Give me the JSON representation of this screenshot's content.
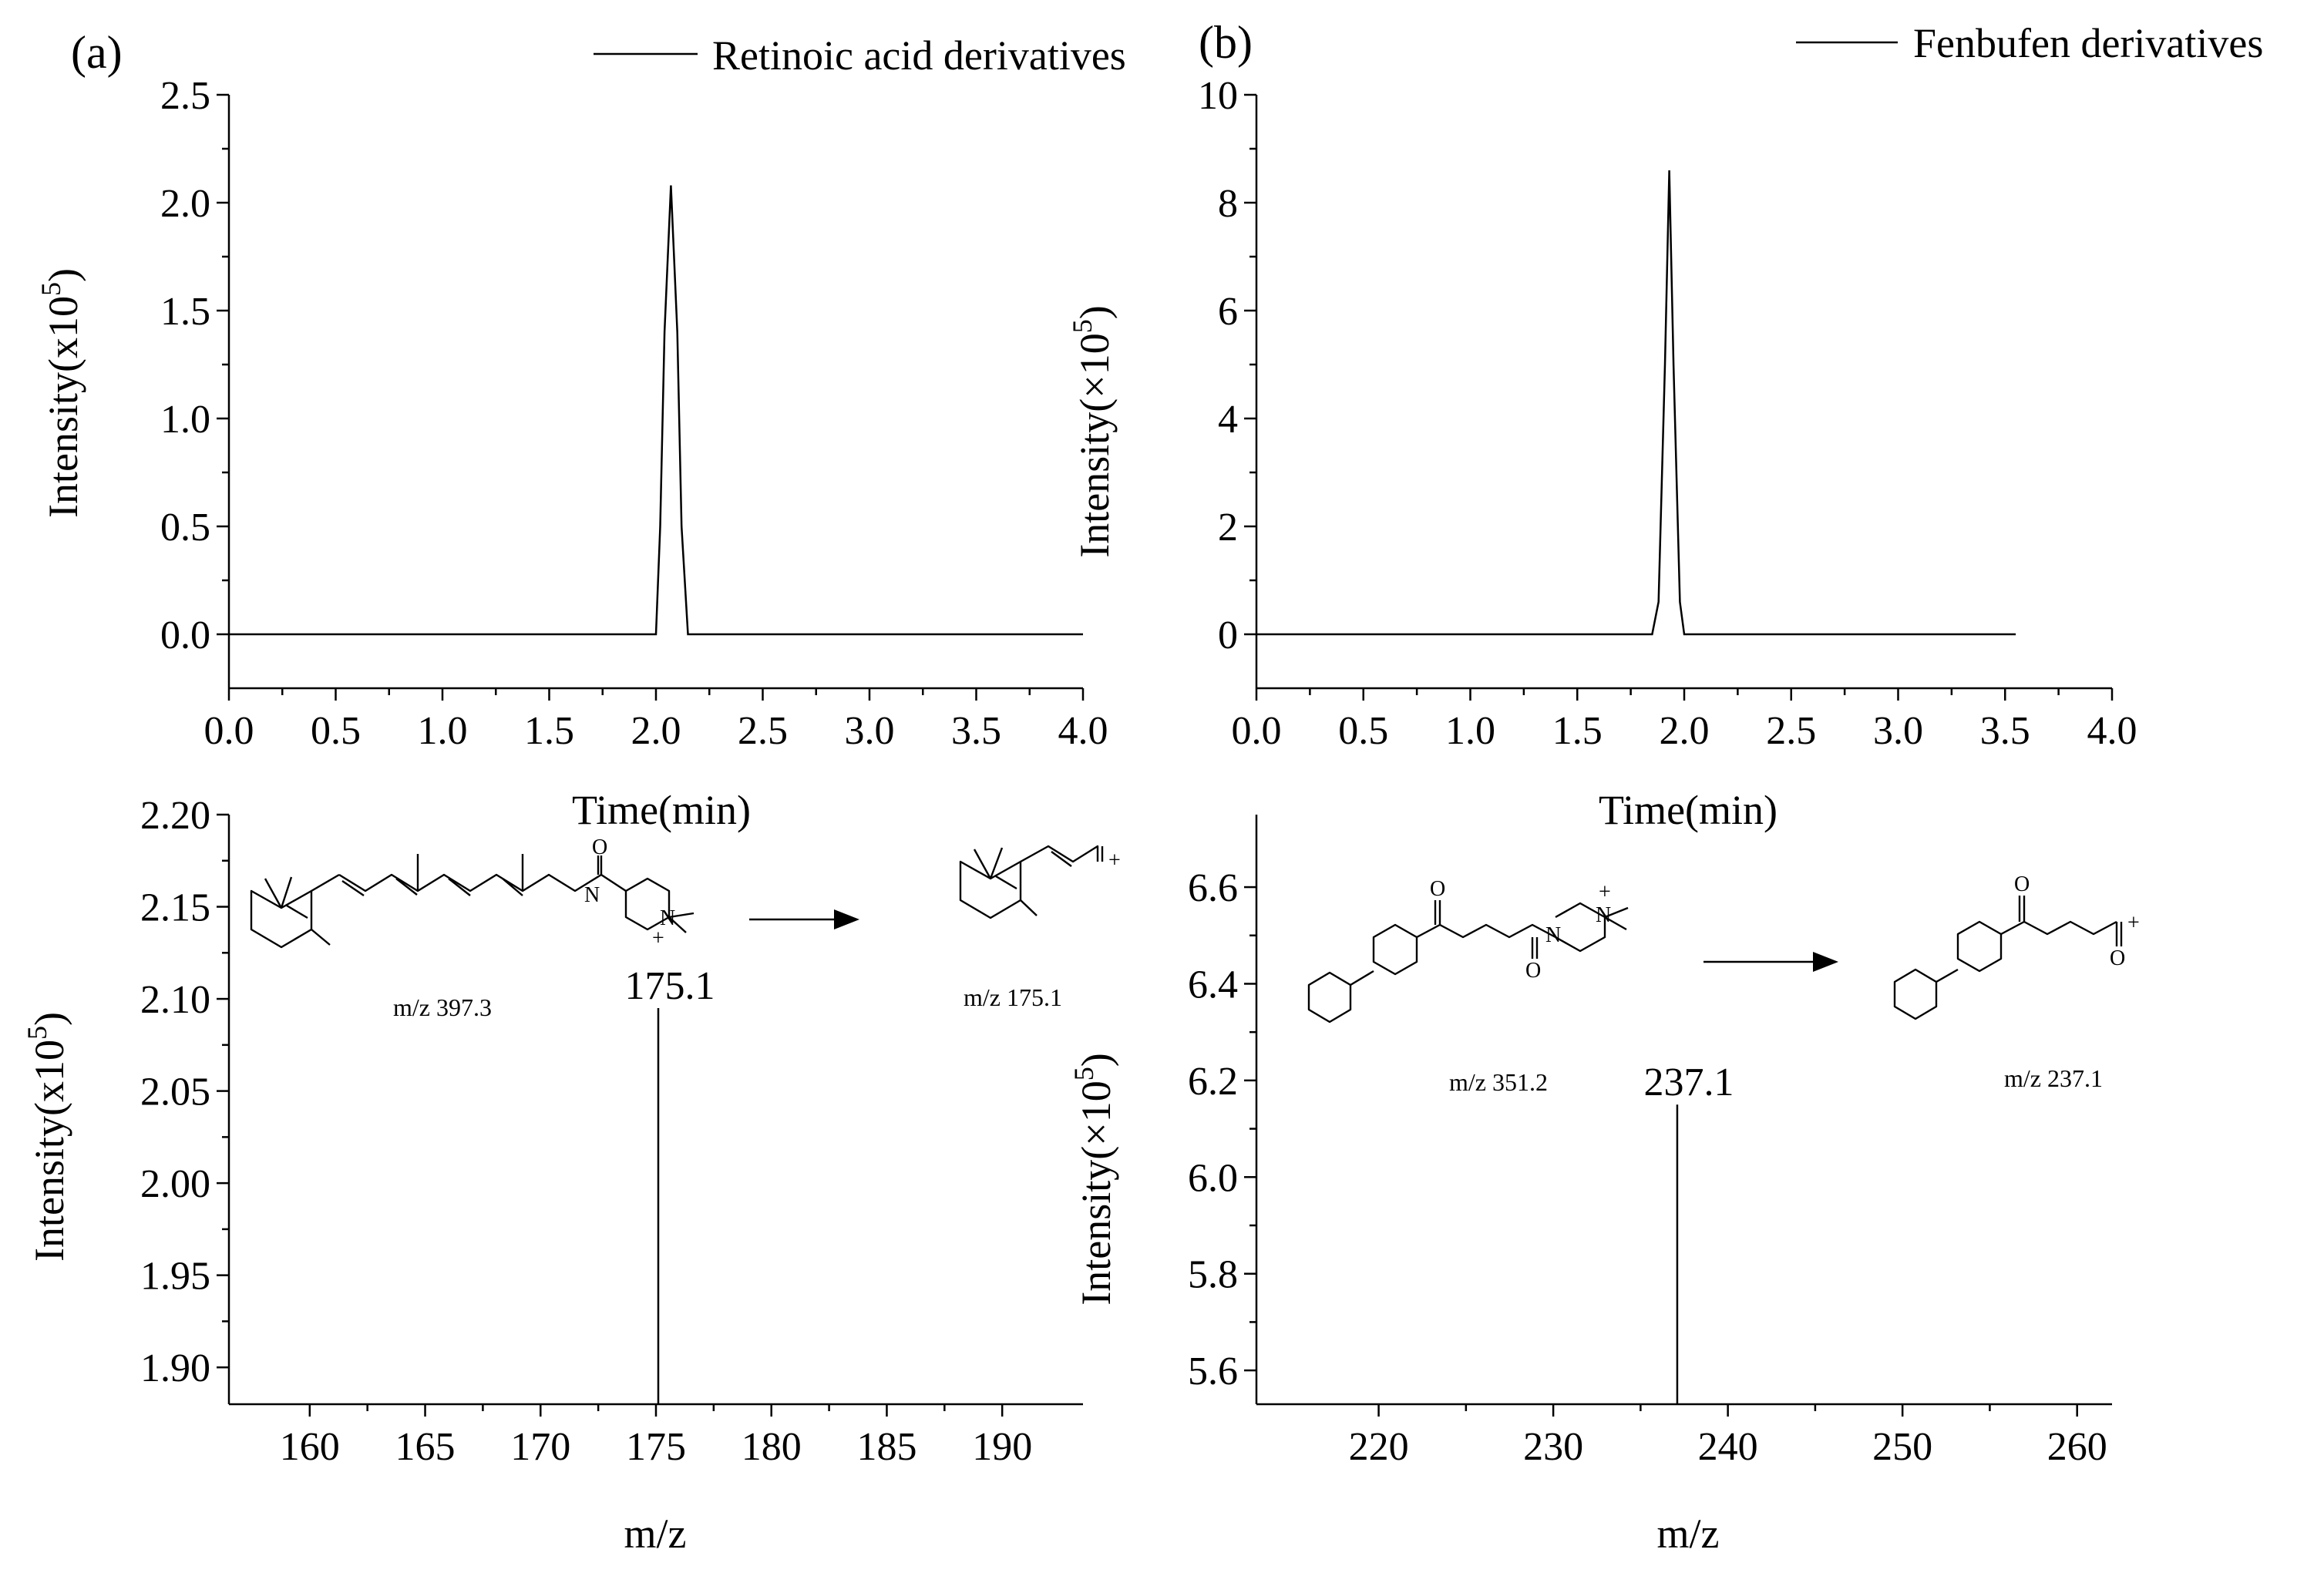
{
  "chart_data": [
    {
      "id": "a_chrom",
      "type": "line",
      "panel_label": "(a)",
      "legend": "Retinoic acid derivatives",
      "xlabel": "Time(min)",
      "ylabel": "Intensity(x10",
      "ylabel_exp": "5",
      "ylabel_close": ")",
      "xlim": [
        0,
        4.0
      ],
      "ylim": [
        -0.25,
        2.5
      ],
      "xticks": [
        "0.0",
        "0.5",
        "1.0",
        "1.5",
        "2.0",
        "2.5",
        "3.0",
        "3.5",
        "4.0"
      ],
      "yticks": [
        "0.0",
        "0.5",
        "1.0",
        "1.5",
        "2.0",
        "2.5"
      ],
      "series": [
        {
          "name": "Retinoic acid derivatives",
          "x": [
            0.0,
            2.0,
            2.02,
            2.04,
            2.07,
            2.1,
            2.12,
            2.15,
            4.0
          ],
          "y": [
            0.0,
            0.0,
            0.5,
            1.4,
            2.08,
            1.4,
            0.5,
            0.0,
            0.0
          ]
        }
      ]
    },
    {
      "id": "b_chrom",
      "type": "line",
      "panel_label": "(b)",
      "legend": "Fenbufen derivatives",
      "xlabel": "Time(min)",
      "ylabel": "Intensity(×10",
      "ylabel_exp": "5",
      "ylabel_close": ")",
      "xlim": [
        0,
        4.0
      ],
      "ylim": [
        -1,
        10
      ],
      "xticks": [
        "0.0",
        "0.5",
        "1.0",
        "1.5",
        "2.0",
        "2.5",
        "3.0",
        "3.5",
        "4.0"
      ],
      "yticks": [
        "0",
        "2",
        "4",
        "6",
        "8",
        "10"
      ],
      "series": [
        {
          "name": "Fenbufen derivatives",
          "x": [
            0.0,
            1.85,
            1.88,
            1.91,
            1.93,
            1.95,
            1.98,
            2.0,
            3.55
          ],
          "y": [
            0.0,
            0.0,
            0.6,
            5.0,
            8.6,
            5.0,
            0.6,
            0.0,
            0.0
          ]
        }
      ]
    },
    {
      "id": "a_ms",
      "type": "bar",
      "xlabel": "m/z",
      "ylabel": "Intensity(x10",
      "ylabel_exp": "5",
      "ylabel_close": ")",
      "xlim": [
        156.5,
        193.5
      ],
      "ylim": [
        1.88,
        2.2
      ],
      "xticks": [
        "160",
        "165",
        "170",
        "175",
        "180",
        "185",
        "190"
      ],
      "yticks": [
        "1.90",
        "1.95",
        "2.00",
        "2.05",
        "2.10",
        "2.15",
        "2.20"
      ],
      "peaks": [
        {
          "mz": 175.1,
          "intensity": 2.095,
          "label": "175.1"
        }
      ],
      "precursor_label": "m/z 397.3",
      "fragment_label": "m/z 175.1"
    },
    {
      "id": "b_ms",
      "type": "bar",
      "xlabel": "m/z",
      "ylabel": "Intensity(×10",
      "ylabel_exp": "5",
      "ylabel_close": ")",
      "xlim": [
        213,
        262
      ],
      "ylim": [
        5.53,
        6.75
      ],
      "xticks": [
        "220",
        "230",
        "240",
        "250",
        "260"
      ],
      "yticks": [
        "5.6",
        "5.8",
        "6.0",
        "6.2",
        "6.4",
        "6.6"
      ],
      "peaks": [
        {
          "mz": 237.1,
          "intensity": 6.15,
          "label": "237.1"
        }
      ],
      "precursor_label": "m/z 351.2",
      "fragment_label": "m/z 237.1"
    }
  ],
  "structures": {
    "oxygen": "O",
    "nitrogen": "N",
    "plus": "+"
  }
}
